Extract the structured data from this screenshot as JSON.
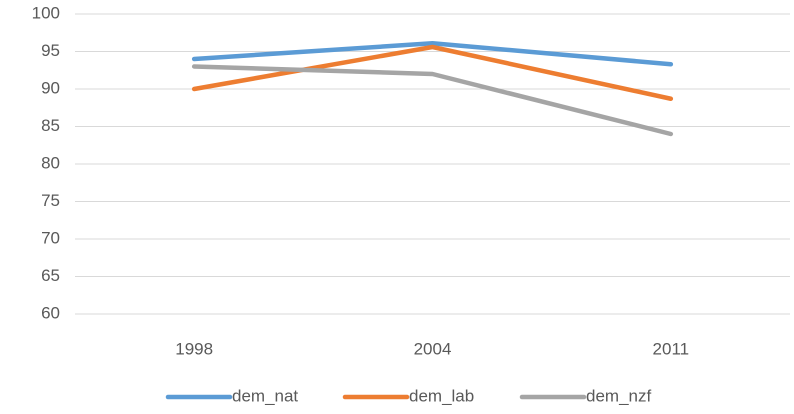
{
  "chart_data": {
    "type": "line",
    "categories": [
      "1998",
      "2004",
      "2011"
    ],
    "series": [
      {
        "name": "dem_nat",
        "color": "#5b9bd5",
        "values": [
          94,
          96.1,
          93.3
        ]
      },
      {
        "name": "dem_lab",
        "color": "#ed7d31",
        "values": [
          90,
          95.6,
          88.7
        ]
      },
      {
        "name": "dem_nzf",
        "color": "#a5a5a5",
        "values": [
          93,
          92,
          84
        ]
      }
    ],
    "ylim": [
      60,
      100
    ],
    "yticks": [
      60,
      65,
      70,
      75,
      80,
      85,
      90,
      95,
      100
    ],
    "grid": true,
    "legend": "bottom"
  }
}
